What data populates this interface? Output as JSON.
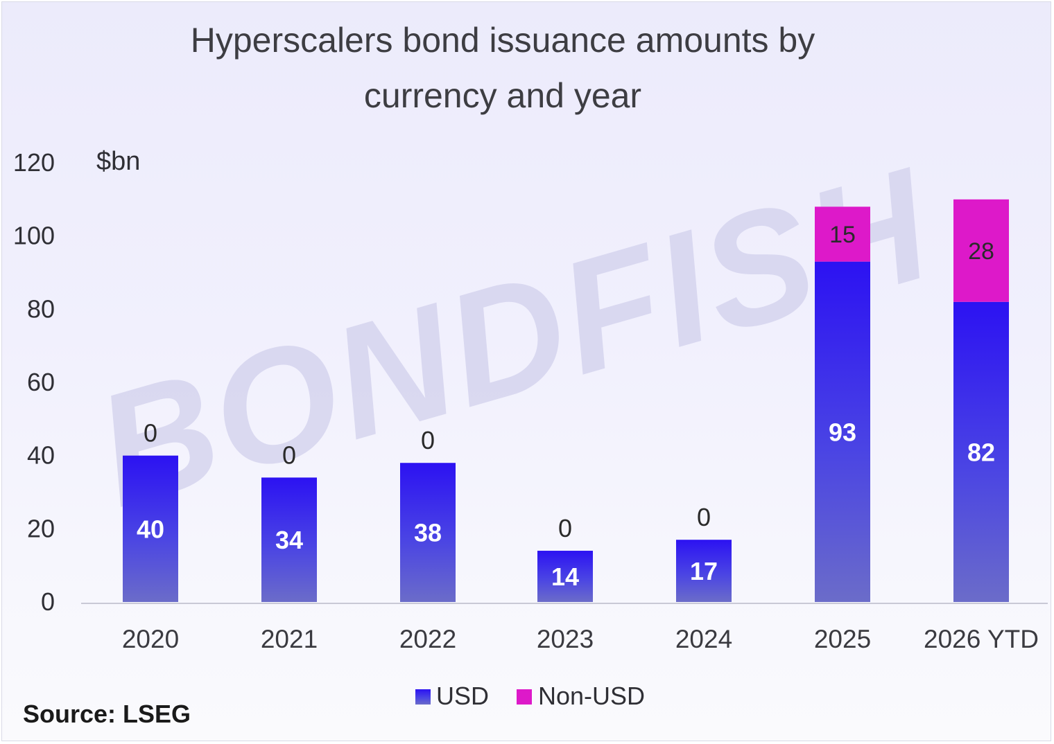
{
  "chart_data": {
    "type": "bar",
    "stacked": true,
    "title_line1": "Hyperscalers bond issuance amounts by",
    "title_line2": "currency and year",
    "unit_label": "$bn",
    "categories": [
      "2020",
      "2021",
      "2022",
      "2023",
      "2024",
      "2025",
      "2026 YTD"
    ],
    "series": [
      {
        "name": "USD",
        "values": [
          40,
          34,
          38,
          14,
          17,
          93,
          82
        ],
        "color": "#3322ee"
      },
      {
        "name": "Non-USD",
        "values": [
          0,
          0,
          0,
          0,
          0,
          15,
          28
        ],
        "color": "#dd19c9"
      }
    ],
    "ylim": [
      0,
      120
    ],
    "yticks": [
      "0",
      "20",
      "40",
      "60",
      "80",
      "100",
      "120"
    ],
    "legend_position": "bottom",
    "grid": false
  },
  "watermark": "BONDFISH",
  "source": "Source: LSEG"
}
